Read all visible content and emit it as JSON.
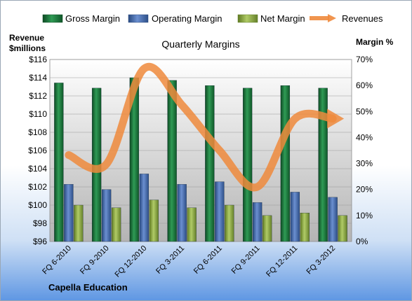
{
  "chart_data": {
    "type": "bar",
    "title": "Quarterly Margins",
    "ylabel_left_line1": "Revenue",
    "ylabel_left_line2": "$millions",
    "ylabel_right": "Margin %",
    "footer": "Capella Education",
    "categories": [
      "FQ 6-2010",
      "FQ 9-2010",
      "FQ 12-2010",
      "FQ 3-2011",
      "FQ 6-2011",
      "FQ 9-2011",
      "FQ 12-2011",
      "FQ 3-2012"
    ],
    "left_axis": {
      "min": 96,
      "max": 116,
      "step": 2,
      "tick_labels": [
        "$96",
        "$98",
        "$100",
        "$102",
        "$104",
        "$106",
        "$108",
        "$110",
        "$112",
        "$114",
        "$116"
      ]
    },
    "right_axis": {
      "min": 0,
      "max": 70,
      "step": 10,
      "tick_labels": [
        "0%",
        "10%",
        "20%",
        "30%",
        "40%",
        "50%",
        "60%",
        "70%"
      ]
    },
    "series": [
      {
        "name": "Gross Margin",
        "kind": "bar",
        "axis": "right",
        "color": "#1d7a3c",
        "values": [
          61,
          59,
          63,
          62,
          60,
          59,
          60,
          59
        ]
      },
      {
        "name": "Operating Margin",
        "kind": "bar",
        "axis": "right",
        "color": "#4a70b5",
        "values": [
          22,
          20,
          26,
          22,
          23,
          15,
          19,
          17
        ]
      },
      {
        "name": "Net Margin",
        "kind": "bar",
        "axis": "right",
        "color": "#93b04a",
        "values": [
          14,
          13,
          16,
          13,
          14,
          10,
          11,
          10
        ]
      },
      {
        "name": "Revenues",
        "kind": "line",
        "axis": "left",
        "color": "#ef8a3c",
        "values": [
          105.5,
          104.5,
          115.0,
          111.0,
          106.0,
          102.0,
          109.5,
          109.5
        ]
      }
    ],
    "legend_position": "top",
    "grid": true
  }
}
